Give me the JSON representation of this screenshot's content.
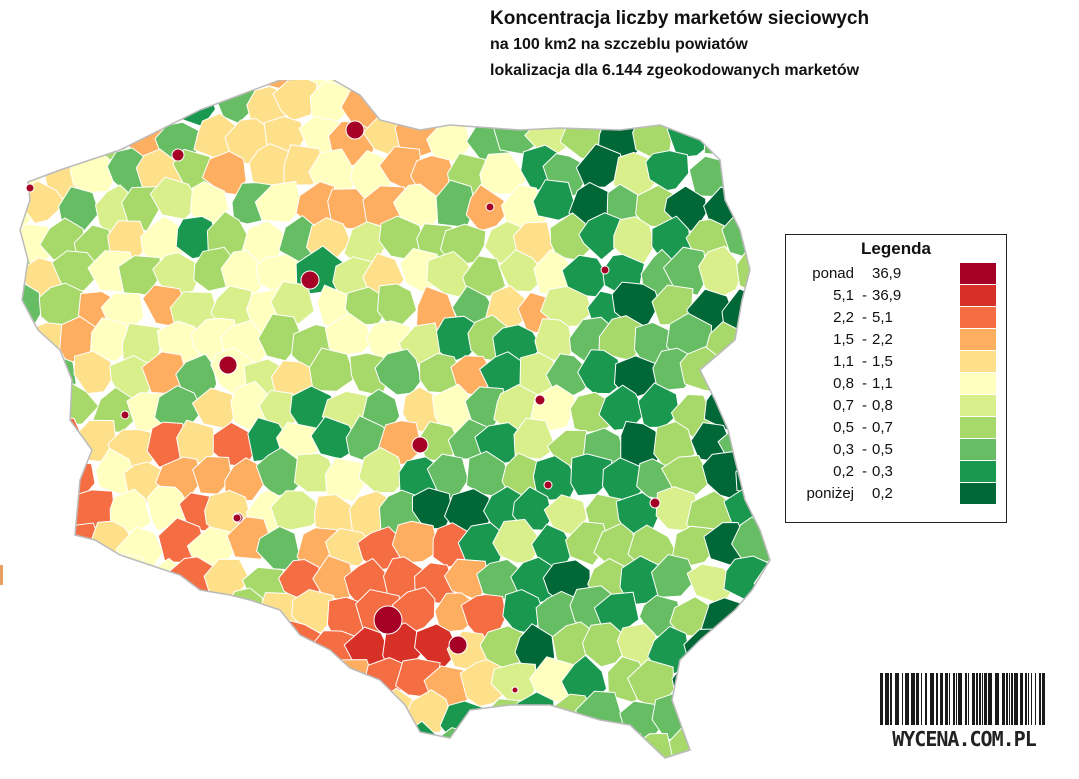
{
  "title": {
    "line1": "Koncentracja liczby marketów sieciowych",
    "line2": "na 100 km2 na szczeblu powiatów",
    "line3": "lokalizacja dla 6.144 zgeokodowanych marketów"
  },
  "legend": {
    "title": "Legenda",
    "items": [
      {
        "lo": "ponad",
        "sep": "",
        "hi": "36,9",
        "color": "#a50026"
      },
      {
        "lo": "5,1",
        "sep": "-",
        "hi": "36,9",
        "color": "#d73027"
      },
      {
        "lo": "2,2",
        "sep": "-",
        "hi": "5,1",
        "color": "#f46d43"
      },
      {
        "lo": "1,5",
        "sep": "-",
        "hi": "2,2",
        "color": "#fdae61"
      },
      {
        "lo": "1,1",
        "sep": "-",
        "hi": "1,5",
        "color": "#fee08b"
      },
      {
        "lo": "0,8",
        "sep": "-",
        "hi": "1,1",
        "color": "#ffffbf"
      },
      {
        "lo": "0,7",
        "sep": "-",
        "hi": "0,8",
        "color": "#d9ef8b"
      },
      {
        "lo": "0,5",
        "sep": "-",
        "hi": "0,7",
        "color": "#a6d96a"
      },
      {
        "lo": "0,3",
        "sep": "-",
        "hi": "0,5",
        "color": "#66bd63"
      },
      {
        "lo": "0,2",
        "sep": "-",
        "hi": "0,3",
        "color": "#1a9850"
      },
      {
        "lo": "poniżej",
        "sep": "",
        "hi": "0,2",
        "color": "#006837"
      }
    ]
  },
  "brand": {
    "text": "WYCENA.COM.PL"
  },
  "map_colors": [
    "#a50026",
    "#d73027",
    "#f46d43",
    "#fdae61",
    "#fee08b",
    "#ffffbf",
    "#d9ef8b",
    "#a6d96a",
    "#66bd63",
    "#1a9850",
    "#006837"
  ]
}
